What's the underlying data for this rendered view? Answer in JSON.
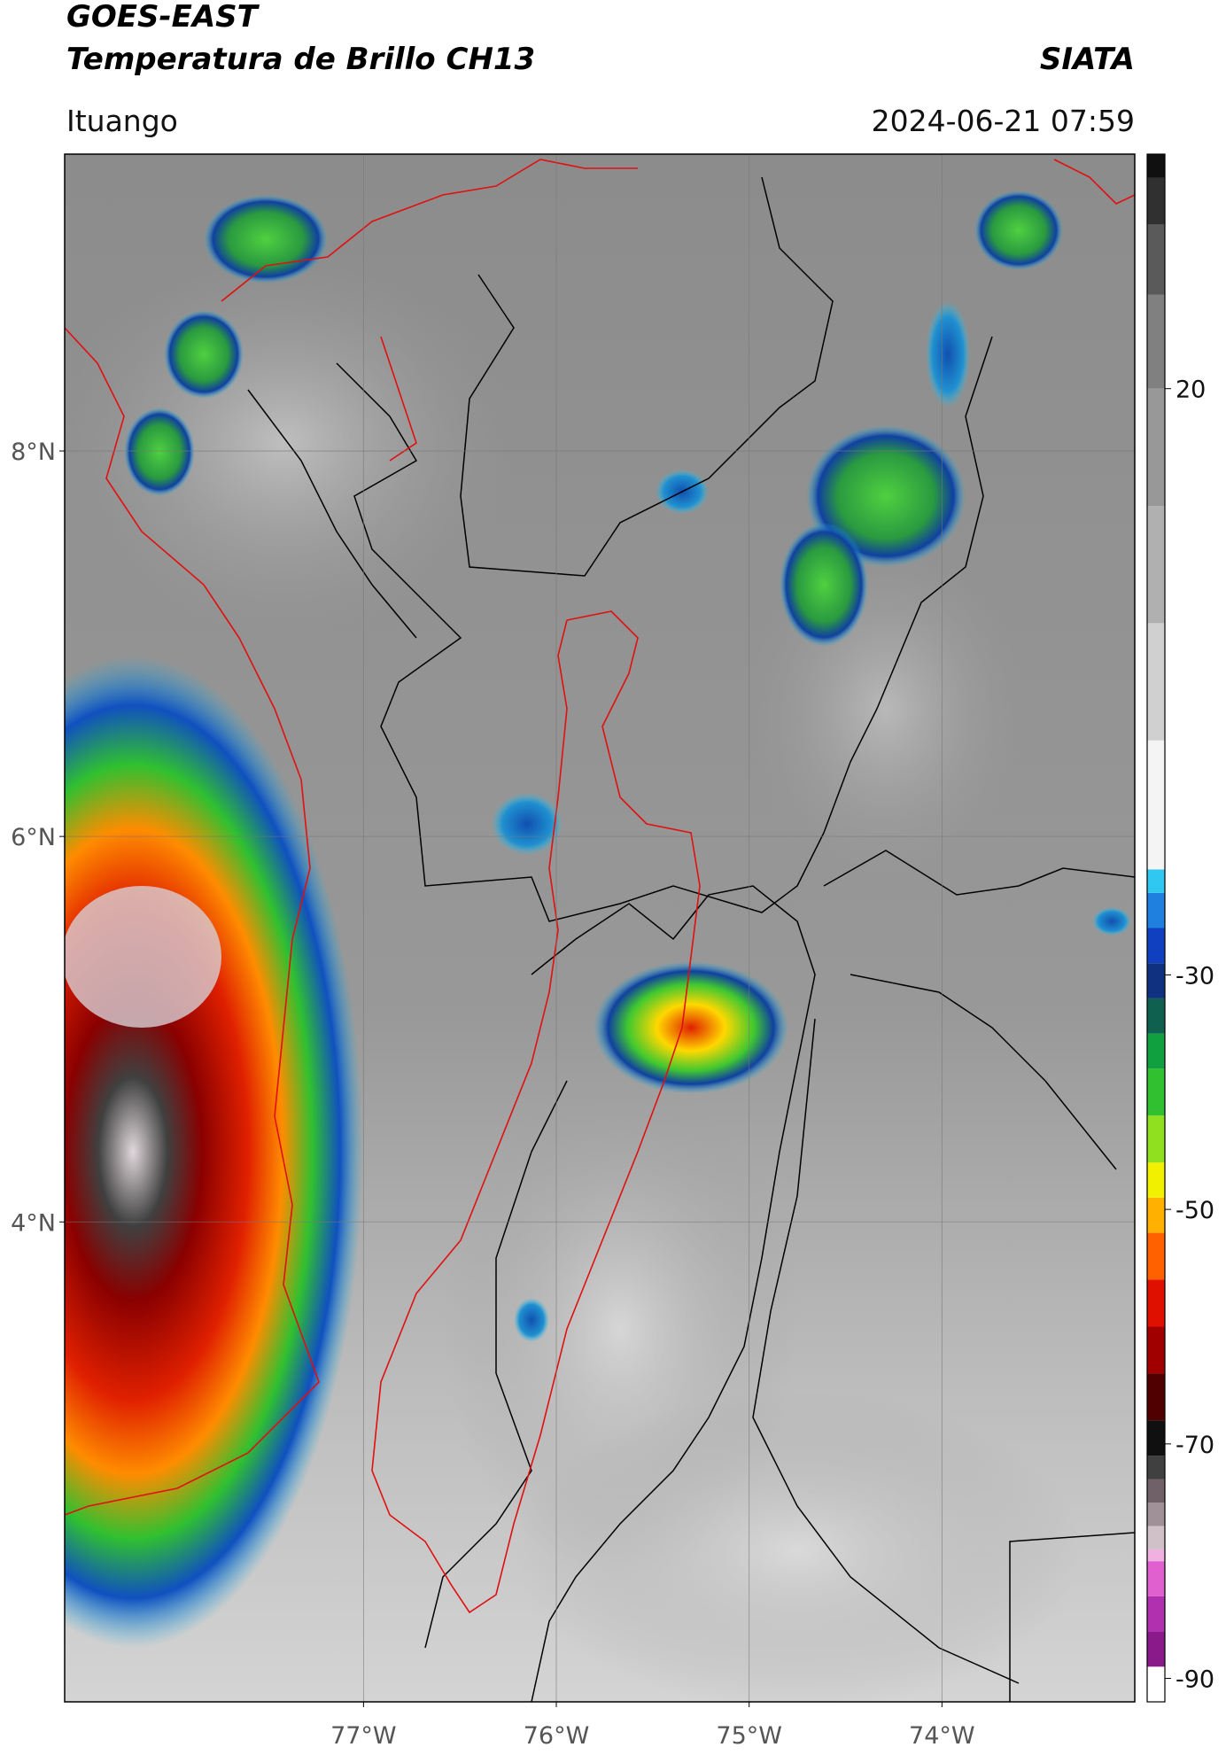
{
  "header": {
    "title": "GOES-EAST",
    "subtitle": "Temperatura de Brillo CH13",
    "source": "SIATA",
    "region": "Ituango",
    "datetime": "2024-06-21 07:59"
  },
  "chart_data": {
    "type": "map",
    "xlim": [
      -78.55,
      -73.0
    ],
    "ylim": [
      1.51,
      9.54
    ],
    "xticks": [
      {
        "value": -77,
        "label": "77°W"
      },
      {
        "value": -76,
        "label": "76°W"
      },
      {
        "value": -75,
        "label": "75°W"
      },
      {
        "value": -74,
        "label": "74°W"
      }
    ],
    "yticks": [
      {
        "value": 4,
        "label": "4°N"
      },
      {
        "value": 6,
        "label": "6°N"
      },
      {
        "value": 8,
        "label": "8°N"
      }
    ],
    "grid": true,
    "colorbar": {
      "lim": [
        -92,
        40
      ],
      "ticks": [
        -90,
        -70,
        -50,
        -30,
        20
      ],
      "colormap": [
        {
          "value": -92,
          "color": "#ffffff"
        },
        {
          "value": -89,
          "color": "#8a1a8a"
        },
        {
          "value": -86,
          "color": "#b030b0"
        },
        {
          "value": -83,
          "color": "#e060d0"
        },
        {
          "value": -80,
          "color": "#f0b0e0"
        },
        {
          "value": -79,
          "color": "#d0c0c8"
        },
        {
          "value": -77,
          "color": "#a09098"
        },
        {
          "value": -75,
          "color": "#706068"
        },
        {
          "value": -73,
          "color": "#404040"
        },
        {
          "value": -71,
          "color": "#101010"
        },
        {
          "value": -68,
          "color": "#500000"
        },
        {
          "value": -64,
          "color": "#a00000"
        },
        {
          "value": -60,
          "color": "#e01000"
        },
        {
          "value": -56,
          "color": "#ff6000"
        },
        {
          "value": -52,
          "color": "#ffb000"
        },
        {
          "value": -49,
          "color": "#f0f000"
        },
        {
          "value": -46,
          "color": "#90e020"
        },
        {
          "value": -42,
          "color": "#30c030"
        },
        {
          "value": -38,
          "color": "#10a040"
        },
        {
          "value": -35,
          "color": "#106050"
        },
        {
          "value": -32,
          "color": "#103080"
        },
        {
          "value": -29,
          "color": "#1040c0"
        },
        {
          "value": -26,
          "color": "#2080e0"
        },
        {
          "value": -23,
          "color": "#30c8f0"
        },
        {
          "value": -21,
          "color": "#f4f4f4"
        },
        {
          "value": -10,
          "color": "#d0d0d0"
        },
        {
          "value": 0,
          "color": "#b0b0b0"
        },
        {
          "value": 10,
          "color": "#989898"
        },
        {
          "value": 20,
          "color": "#808080"
        },
        {
          "value": 28,
          "color": "#5a5a5a"
        },
        {
          "value": 34,
          "color": "#303030"
        },
        {
          "value": 38,
          "color": "#101010"
        }
      ]
    }
  }
}
